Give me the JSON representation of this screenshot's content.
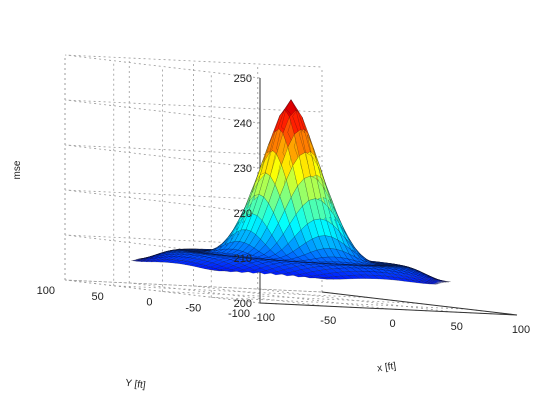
{
  "chart_data": {
    "type": "surface",
    "title": "",
    "xlabel": "x [ft]",
    "ylabel": "Y [ft]",
    "zlabel": "mse",
    "x_ticks": [
      "-100",
      "-50",
      "0",
      "50",
      "100"
    ],
    "y_ticks": [
      "100",
      "50",
      "0",
      "-50",
      "-100"
    ],
    "z_ticks": [
      "200",
      "210",
      "220",
      "230",
      "240",
      "250"
    ],
    "xlim": [
      -100,
      100
    ],
    "ylim": [
      -100,
      100
    ],
    "zlim": [
      200,
      250
    ],
    "grid": true,
    "colormap": "jet",
    "surface": {
      "shape": "octagonal",
      "base_z": 207,
      "peak_z": 244,
      "peak_x": 0,
      "peak_y": 0,
      "radius": 100
    }
  }
}
